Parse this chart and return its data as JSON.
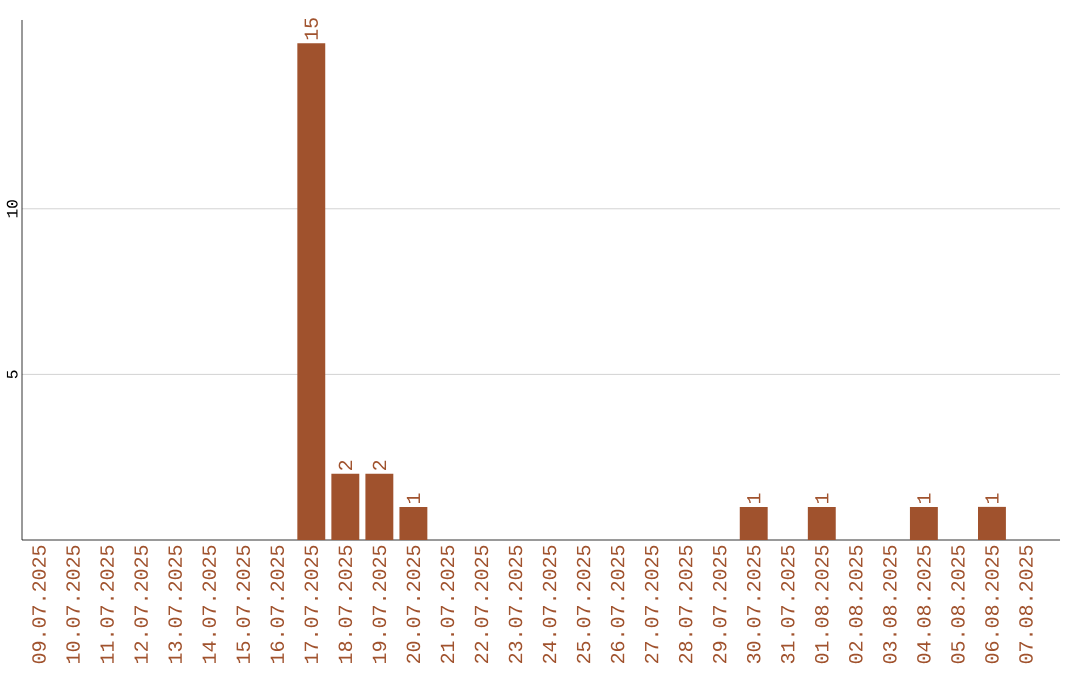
{
  "chart_data": {
    "type": "bar",
    "categories": [
      "09.07.2025",
      "10.07.2025",
      "11.07.2025",
      "12.07.2025",
      "13.07.2025",
      "14.07.2025",
      "15.07.2025",
      "16.07.2025",
      "17.07.2025",
      "18.07.2025",
      "19.07.2025",
      "20.07.2025",
      "21.07.2025",
      "22.07.2025",
      "23.07.2025",
      "24.07.2025",
      "25.07.2025",
      "26.07.2025",
      "27.07.2025",
      "28.07.2025",
      "29.07.2025",
      "30.07.2025",
      "31.07.2025",
      "01.08.2025",
      "02.08.2025",
      "03.08.2025",
      "04.08.2025",
      "05.08.2025",
      "06.08.2025",
      "07.08.2025"
    ],
    "values": [
      0,
      0,
      0,
      0,
      0,
      0,
      0,
      0,
      15,
      2,
      2,
      1,
      0,
      0,
      0,
      0,
      0,
      0,
      0,
      0,
      0,
      1,
      0,
      1,
      0,
      0,
      1,
      0,
      1,
      0
    ],
    "value_labels": [
      null,
      null,
      null,
      null,
      null,
      null,
      null,
      null,
      "15",
      "2",
      "2",
      "1",
      null,
      null,
      null,
      null,
      null,
      null,
      null,
      null,
      null,
      "1",
      null,
      "1",
      null,
      null,
      "1",
      null,
      "1",
      null
    ],
    "color": "#a0522d",
    "ylim": [
      0,
      15.7
    ],
    "yticks": [
      5,
      10
    ],
    "grid": "y"
  }
}
